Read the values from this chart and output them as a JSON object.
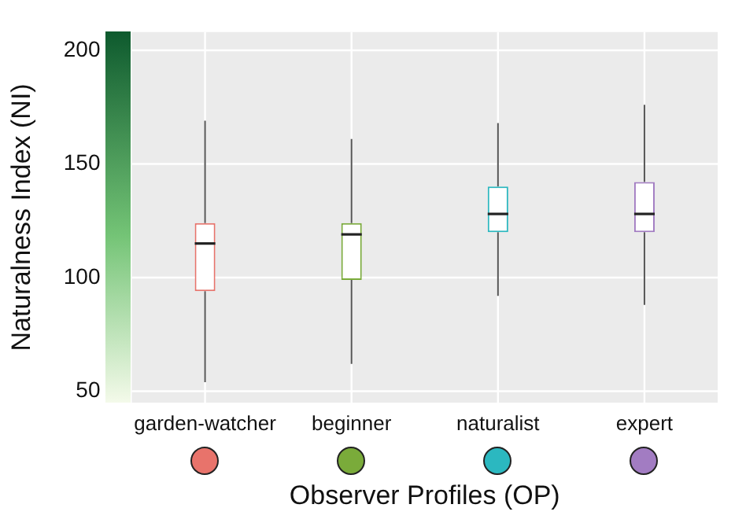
{
  "chart_data": {
    "type": "box",
    "xlabel": "Observer Profiles (OP)",
    "ylabel": "Naturalness Index (NI)",
    "categories": [
      "garden-watcher",
      "beginner",
      "naturalist",
      "expert"
    ],
    "colors": [
      "#e8736b",
      "#7aab3a",
      "#2bb8c0",
      "#a27cc2"
    ],
    "boxes": [
      {
        "low": 54,
        "q1": 94,
        "median": 115,
        "q3": 124,
        "high": 169
      },
      {
        "low": 62,
        "q1": 99,
        "median": 119,
        "q3": 124,
        "high": 161
      },
      {
        "low": 92,
        "q1": 120,
        "median": 128,
        "q3": 140,
        "high": 168
      },
      {
        "low": 88,
        "q1": 120,
        "median": 128,
        "q3": 142,
        "high": 176
      }
    ],
    "ylim": [
      45,
      208
    ],
    "yticks": [
      50,
      100,
      150,
      200
    ],
    "grid": true
  }
}
